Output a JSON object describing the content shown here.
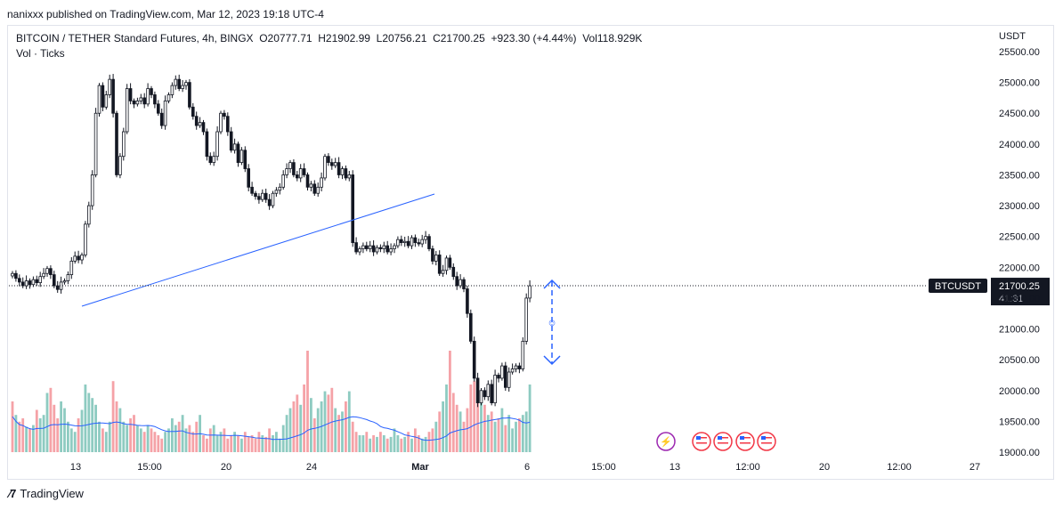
{
  "header": {
    "published": "nanixxx published on TradingView.com, Mar 12, 2023 19:18 UTC-4"
  },
  "legend": {
    "symbol": "BITCOIN / TETHER Standard Futures, 4h, BINGX",
    "open": "O20777.71",
    "high": "H21902.99",
    "low": "L20756.21",
    "close": "C21700.25",
    "change": "+923.30 (+4.44%)",
    "volume": "Vol118.929K",
    "indicator": "Vol · Ticks"
  },
  "footer": {
    "brand": "TradingView",
    "logo_icon": "tradingview-logo-icon"
  },
  "price_tag": {
    "symbol": "BTCUSDT",
    "price": "21700.25",
    "countdown": "41:31"
  },
  "colors": {
    "up": "#089981",
    "down": "#f23645",
    "vol_up": "#8ecbc1",
    "vol_down": "#f5a2a7",
    "trend": "#2962ff",
    "ma": "#2962ff"
  },
  "chart_data": {
    "type": "candlestick",
    "currency": "USDT",
    "yaxis_ticks": [
      25500,
      25000,
      24500,
      24000,
      23500,
      23000,
      22500,
      22000,
      21500,
      21000,
      20500,
      20000,
      19500,
      19000
    ],
    "ylim": [
      19000,
      25500
    ],
    "xaxis_ticks": [
      {
        "label": "13",
        "bold": false
      },
      {
        "label": "15:00",
        "bold": false
      },
      {
        "label": "20",
        "bold": false
      },
      {
        "label": "24",
        "bold": false
      },
      {
        "label": "Mar",
        "bold": true
      },
      {
        "label": "6",
        "bold": false
      },
      {
        "label": "15:00",
        "bold": false
      },
      {
        "label": "13",
        "bold": false
      },
      {
        "label": "12:00",
        "bold": false
      },
      {
        "label": "20",
        "bold": false
      },
      {
        "label": "12:00",
        "bold": false
      },
      {
        "label": "27",
        "bold": false
      }
    ],
    "last_price": 21700.25,
    "closes": [
      21900,
      21820,
      21760,
      21700,
      21780,
      21720,
      21800,
      21750,
      21850,
      21900,
      21980,
      21880,
      21700,
      21640,
      21760,
      21780,
      21880,
      22100,
      22180,
      22120,
      22200,
      22700,
      23000,
      23500,
      24500,
      24950,
      24600,
      24800,
      25050,
      24500,
      23500,
      23800,
      24200,
      24900,
      24700,
      24650,
      24700,
      24750,
      24650,
      24900,
      24800,
      24650,
      24500,
      24300,
      24700,
      24800,
      24950,
      25050,
      24900,
      24950,
      25000,
      24600,
      24450,
      24300,
      24350,
      24200,
      23800,
      23700,
      23800,
      24200,
      24500,
      24450,
      24200,
      23900,
      24000,
      23700,
      23900,
      23600,
      23300,
      23200,
      23150,
      23100,
      23200,
      23100,
      23000,
      23200,
      23250,
      23300,
      23500,
      23600,
      23700,
      23500,
      23450,
      23600,
      23500,
      23300,
      23350,
      23200,
      23300,
      23450,
      23800,
      23700,
      23650,
      23700,
      23500,
      23600,
      23450,
      23500,
      22400,
      22250,
      22300,
      22350,
      22300,
      22350,
      22250,
      22320,
      22300,
      22350,
      22250,
      22300,
      22350,
      22450,
      22400,
      22420,
      22350,
      22480,
      22400,
      22380,
      22450,
      22500,
      22300,
      22100,
      22200,
      21900,
      21950,
      22150,
      22000,
      21850,
      21700,
      21800,
      21650,
      21250,
      20800,
      20200,
      19800,
      20000,
      19900,
      20100,
      19800,
      20250,
      20200,
      20400,
      20050,
      20300,
      20350,
      20400,
      20350,
      20800,
      21500,
      21700.25
    ],
    "volumes_rel": [
      30,
      22,
      18,
      20,
      15,
      14,
      16,
      25,
      20,
      22,
      35,
      38,
      28,
      20,
      30,
      26,
      18,
      14,
      12,
      20,
      25,
      40,
      35,
      32,
      28,
      18,
      14,
      12,
      18,
      42,
      30,
      26,
      18,
      16,
      20,
      22,
      16,
      14,
      12,
      16,
      14,
      12,
      10,
      8,
      12,
      14,
      20,
      16,
      18,
      22,
      14,
      16,
      12,
      18,
      22,
      10,
      8,
      14,
      16,
      10,
      12,
      14,
      8,
      10,
      12,
      10,
      8,
      12,
      9,
      10,
      8,
      12,
      10,
      9,
      14,
      10,
      12,
      8,
      16,
      22,
      26,
      30,
      34,
      28,
      40,
      60,
      32,
      20,
      26,
      30,
      36,
      34,
      38,
      26,
      22,
      24,
      30,
      36,
      18,
      12,
      10,
      10,
      12,
      8,
      10,
      9,
      12,
      10,
      8,
      9,
      14,
      10,
      8,
      9,
      12,
      8,
      14,
      10,
      8,
      9,
      12,
      14,
      18,
      24,
      30,
      40,
      60,
      35,
      28,
      24,
      18,
      26,
      40,
      42,
      36,
      30,
      28,
      22,
      24,
      18,
      20,
      26,
      16,
      22,
      14,
      18,
      20,
      22,
      24,
      40
    ],
    "volume_down": [
      1,
      0,
      1,
      1,
      0,
      1,
      0,
      1,
      0,
      0,
      0,
      1,
      1,
      1,
      0,
      0,
      0,
      0,
      0,
      1,
      0,
      0,
      0,
      0,
      0,
      0,
      1,
      0,
      0,
      1,
      1,
      0,
      0,
      0,
      1,
      1,
      0,
      0,
      1,
      0,
      1,
      1,
      1,
      1,
      0,
      0,
      0,
      0,
      1,
      0,
      0,
      1,
      1,
      1,
      0,
      1,
      1,
      1,
      0,
      0,
      0,
      1,
      1,
      1,
      0,
      1,
      0,
      1,
      1,
      1,
      1,
      1,
      0,
      1,
      1,
      0,
      0,
      0,
      0,
      0,
      0,
      1,
      1,
      0,
      1,
      1,
      0,
      1,
      0,
      0,
      0,
      1,
      1,
      0,
      1,
      0,
      1,
      0,
      1,
      1,
      0,
      0,
      1,
      0,
      1,
      0,
      1,
      0,
      1,
      0,
      0,
      0,
      1,
      0,
      1,
      0,
      1,
      1,
      0,
      0,
      1,
      1,
      0,
      1,
      0,
      0,
      1,
      1,
      1,
      0,
      1,
      1,
      1,
      1,
      1,
      0,
      1,
      0,
      1,
      0,
      1,
      0,
      1,
      0,
      0,
      0,
      1,
      0,
      0,
      0
    ]
  }
}
